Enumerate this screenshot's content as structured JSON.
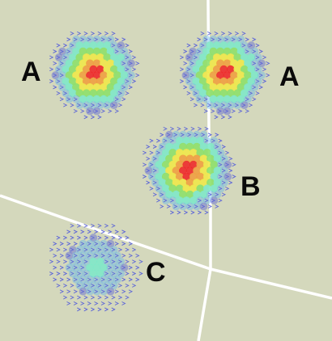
{
  "map": {
    "background_color": "#d4d8bc",
    "road_color": "#ffffff",
    "labels": [
      {
        "id": "label-a-left",
        "text": "A"
      },
      {
        "id": "label-a-right",
        "text": "A"
      },
      {
        "id": "label-b",
        "text": "B"
      },
      {
        "id": "label-c",
        "text": "C"
      }
    ],
    "hotspots": [
      {
        "id": "hotspot-a-left",
        "region": "A",
        "intensity": 1.0
      },
      {
        "id": "hotspot-a-right",
        "region": "A",
        "intensity": 1.0
      },
      {
        "id": "hotspot-b",
        "region": "B",
        "intensity": 1.0
      },
      {
        "id": "hotspot-c",
        "region": "C",
        "intensity": 0.35
      }
    ],
    "heat_colors": [
      "#5a63d8",
      "#68b8e8",
      "#7fe8c8",
      "#8ee06a",
      "#f0e84a",
      "#f0a040",
      "#ee2a2a"
    ]
  }
}
